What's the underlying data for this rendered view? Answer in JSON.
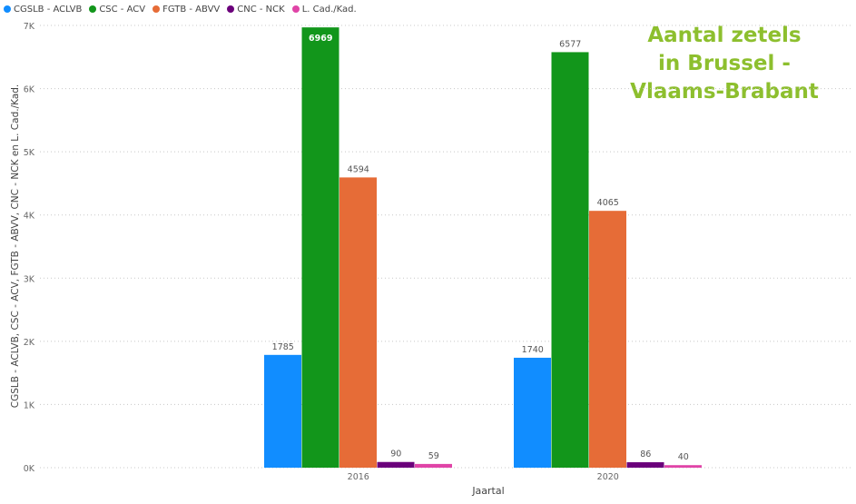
{
  "chart_data": {
    "type": "bar",
    "title_lines": [
      "Aantal zetels",
      "in Brussel -",
      "Vlaams-Brabant"
    ],
    "xlabel": "Jaartal",
    "ylabel": "CGSLB - ACLVB, CSC - ACV, FGTB - ABVV, CNC - NCK en L. Cad./Kad.",
    "categories": [
      "2016",
      "2020"
    ],
    "ylim": [
      0,
      7000
    ],
    "yticks": [
      {
        "value": 0,
        "label": "0K"
      },
      {
        "value": 1000,
        "label": "1K"
      },
      {
        "value": 2000,
        "label": "2K"
      },
      {
        "value": 3000,
        "label": "3K"
      },
      {
        "value": 4000,
        "label": "4K"
      },
      {
        "value": 5000,
        "label": "5K"
      },
      {
        "value": 6000,
        "label": "6K"
      },
      {
        "value": 7000,
        "label": "7K"
      }
    ],
    "grid": true,
    "legend_position": "top-left",
    "series": [
      {
        "name": "CGSLB - ACLVB",
        "color": "#118dff",
        "values": [
          1785,
          1740
        ]
      },
      {
        "name": "CSC - ACV",
        "color": "#12961b",
        "values": [
          6969,
          6577
        ]
      },
      {
        "name": "FGTB - ABVV",
        "color": "#e66c37",
        "values": [
          4594,
          4065
        ]
      },
      {
        "name": "CNC - NCK",
        "color": "#6b007b",
        "values": [
          90,
          86
        ]
      },
      {
        "name": "L. Cad./Kad.",
        "color": "#e044a7",
        "values": [
          59,
          40
        ]
      }
    ]
  }
}
